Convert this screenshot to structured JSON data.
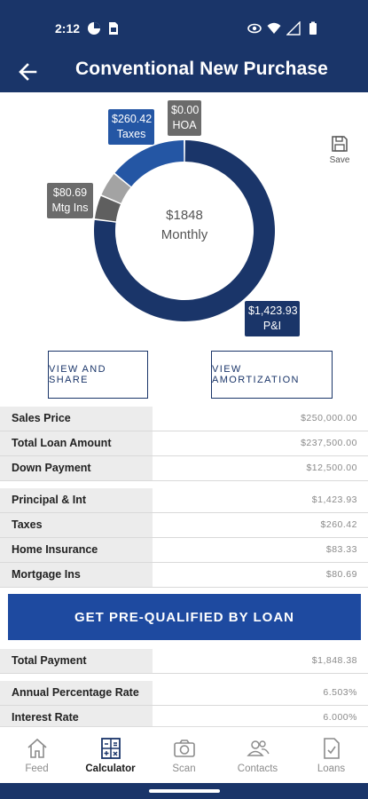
{
  "status_bar": {
    "time": "2:12"
  },
  "app_bar": {
    "title": "Conventional New Purchase"
  },
  "chart_data": {
    "type": "pie",
    "center_value": "$1848",
    "center_label": "Monthly",
    "slices": [
      {
        "label": "P&I",
        "value": 1423.93,
        "display": "$1,423.93",
        "color": "#1a3569"
      },
      {
        "label": "Mtg Ins",
        "value": 80.69,
        "display": "$80.69",
        "color": "#5f5f5f"
      },
      {
        "label": "HOA",
        "value": 0.0,
        "display": "$0.00",
        "color": "#9a9a9a"
      },
      {
        "label": "Taxes",
        "value": 260.42,
        "display": "$260.42",
        "color": "#2456a4"
      }
    ],
    "extra_segment": {
      "color": "#a3a3a3",
      "value": 83.33
    }
  },
  "save": {
    "label": "Save",
    "icon": "floppy-disk-icon"
  },
  "buttons": {
    "view_share": "VIEW AND SHARE",
    "view_amortization": "VIEW AMORTIZATION",
    "cta": "GET PRE-QUALIFIED BY LOAN"
  },
  "loan_summary": [
    {
      "label": "Sales Price",
      "value": "$250,000.00"
    },
    {
      "label": "Total Loan Amount",
      "value": "$237,500.00"
    },
    {
      "label": "Down Payment",
      "value": "$12,500.00"
    }
  ],
  "payment_breakdown": [
    {
      "label": "Principal & Int",
      "value": "$1,423.93"
    },
    {
      "label": "Taxes",
      "value": "$260.42"
    },
    {
      "label": "Home Insurance",
      "value": "$83.33"
    },
    {
      "label": "Mortgage Ins",
      "value": "$80.69"
    }
  ],
  "total": [
    {
      "label": "Total Payment",
      "value": "$1,848.38"
    }
  ],
  "rates": [
    {
      "label": "Annual Percentage Rate",
      "value": "6.503%"
    },
    {
      "label": "Interest Rate",
      "value": "6.000%"
    }
  ],
  "tabs": [
    {
      "label": "Feed",
      "icon": "home-icon",
      "active": false
    },
    {
      "label": "Calculator",
      "icon": "calculator-icon",
      "active": true
    },
    {
      "label": "Scan",
      "icon": "camera-icon",
      "active": false
    },
    {
      "label": "Contacts",
      "icon": "contacts-icon",
      "active": false
    },
    {
      "label": "Loans",
      "icon": "document-check-icon",
      "active": false
    }
  ]
}
